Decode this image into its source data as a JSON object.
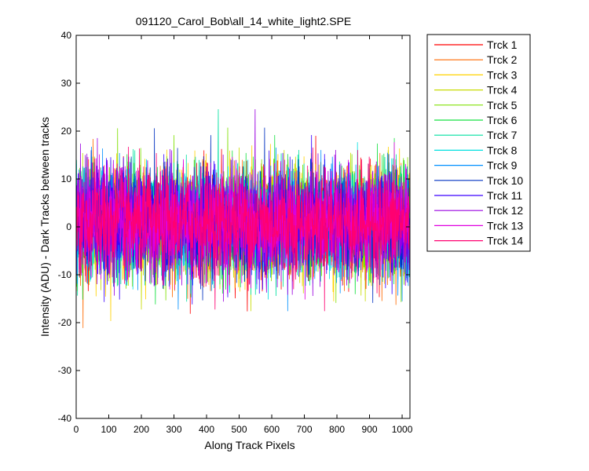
{
  "chart_data": {
    "type": "line",
    "title": "091120_Carol_Bob\\all_14_white_light2.SPE",
    "xlabel": "Along Track Pixels",
    "ylabel": "Intensity (ADU) - Dark Tracks between tracks",
    "xlim": [
      0,
      1024
    ],
    "ylim": [
      -40,
      40
    ],
    "xticks": [
      0,
      100,
      200,
      300,
      400,
      500,
      600,
      700,
      800,
      900,
      1000
    ],
    "yticks": [
      -40,
      -30,
      -20,
      -10,
      0,
      10,
      20,
      30,
      40
    ],
    "grid": false,
    "legend_position": "outside-right-top",
    "points_per_series": 1024,
    "series": [
      {
        "name": "Trck 1",
        "color": "#ff0000",
        "mean": 1,
        "std": 5.5
      },
      {
        "name": "Trck 2",
        "color": "#ff6a00",
        "mean": 1,
        "std": 5.5
      },
      {
        "name": "Trck 3",
        "color": "#ffd200",
        "mean": 1,
        "std": 5.5
      },
      {
        "name": "Trck 4",
        "color": "#c8dc00",
        "mean": 1,
        "std": 5.5
      },
      {
        "name": "Trck 5",
        "color": "#7fe000",
        "mean": 1,
        "std": 5.5
      },
      {
        "name": "Trck 6",
        "color": "#14e040",
        "mean": 1,
        "std": 5.5
      },
      {
        "name": "Trck 7",
        "color": "#00e0a0",
        "mean": 1,
        "std": 5.5
      },
      {
        "name": "Trck 8",
        "color": "#00e0e0",
        "mean": 1,
        "std": 5.5
      },
      {
        "name": "Trck 9",
        "color": "#0090ff",
        "mean": 1,
        "std": 5.5
      },
      {
        "name": "Trck 10",
        "color": "#0030c0",
        "mean": 1,
        "std": 5.5
      },
      {
        "name": "Trck 11",
        "color": "#3a00ff",
        "mean": 1,
        "std": 5.5
      },
      {
        "name": "Trck 12",
        "color": "#9a00e0",
        "mean": 1,
        "std": 5.5
      },
      {
        "name": "Trck 13",
        "color": "#e000e0",
        "mean": 1,
        "std": 5.5
      },
      {
        "name": "Trck 14",
        "color": "#ff0070",
        "mean": 1,
        "std": 5.5
      }
    ]
  }
}
